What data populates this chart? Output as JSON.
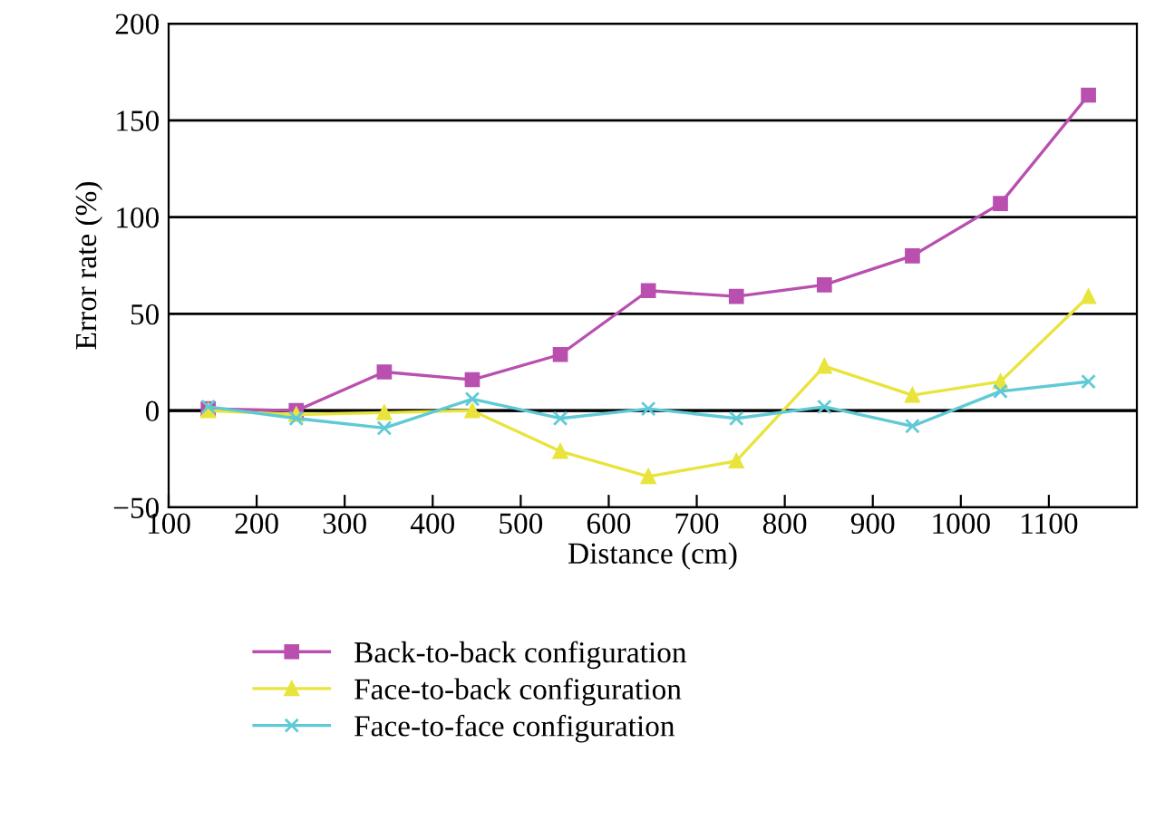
{
  "chart_data": {
    "type": "line",
    "xlabel": "Distance (cm)",
    "ylabel": "Error rate (%)",
    "x": [
      145,
      245,
      345,
      445,
      545,
      645,
      745,
      845,
      945,
      1045,
      1145
    ],
    "xlim": [
      100,
      1200
    ],
    "xticks": [
      100,
      200,
      300,
      400,
      500,
      600,
      700,
      800,
      900,
      1000,
      1100
    ],
    "ylim": [
      -50,
      200
    ],
    "yticks": [
      -50,
      0,
      50,
      100,
      150,
      200
    ],
    "grid": "y",
    "legend": "bottom",
    "series": [
      {
        "name": "Back-to-back configuration",
        "color": "#b94faf",
        "marker": "square",
        "values": [
          1,
          0,
          20,
          16,
          29,
          62,
          59,
          65,
          80,
          107,
          163
        ]
      },
      {
        "name": "Face-to-back configuration",
        "color": "#e8e43c",
        "marker": "triangle",
        "values": [
          0,
          -2,
          -1,
          0,
          -21,
          -34,
          -26,
          23,
          8,
          15,
          59
        ]
      },
      {
        "name": "Face-to-face configuration",
        "color": "#5fcad6",
        "marker": "cross",
        "values": [
          2,
          -4,
          -9,
          6,
          -4,
          1,
          -4,
          2,
          -8,
          10,
          15
        ]
      }
    ]
  }
}
